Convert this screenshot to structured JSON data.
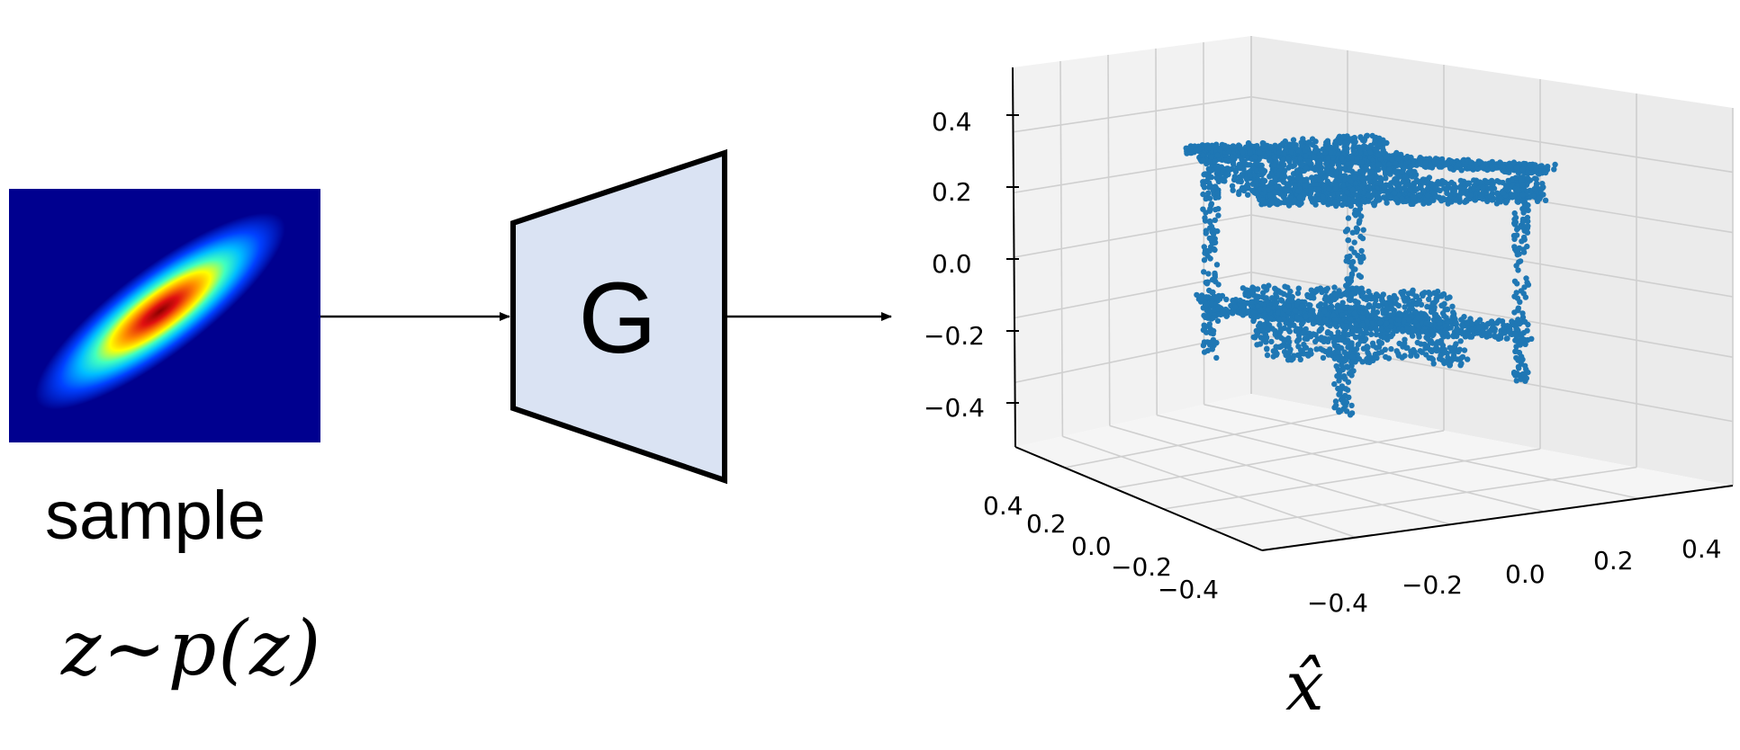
{
  "sample_label": "sample",
  "latent_formula": "z∼p(z)",
  "generator_label": "G",
  "output_label": "x̂",
  "colors": {
    "generator_fill": "#dae3f3",
    "heatmap_background": "#00008f",
    "point_color": "#1f77b4"
  },
  "chart_data": {
    "type": "scatter",
    "projection": "3d",
    "title": "",
    "grid": true,
    "z_ticks": [
      "0.4",
      "0.2",
      "0.0",
      "−0.2",
      "−0.4"
    ],
    "x_ticks": [
      "−0.4",
      "−0.2",
      "0.0",
      "0.2",
      "0.4"
    ],
    "y_ticks": [
      "0.4",
      "0.2",
      "0.0",
      "−0.2",
      "−0.4"
    ],
    "xlim": [
      -0.5,
      0.5
    ],
    "ylim": [
      -0.5,
      0.5
    ],
    "zlim": [
      -0.5,
      0.5
    ],
    "description_of_points": "point cloud of a two-shelf table: top surface z≈0.2, lower shelf z≈-0.2, four legs"
  }
}
